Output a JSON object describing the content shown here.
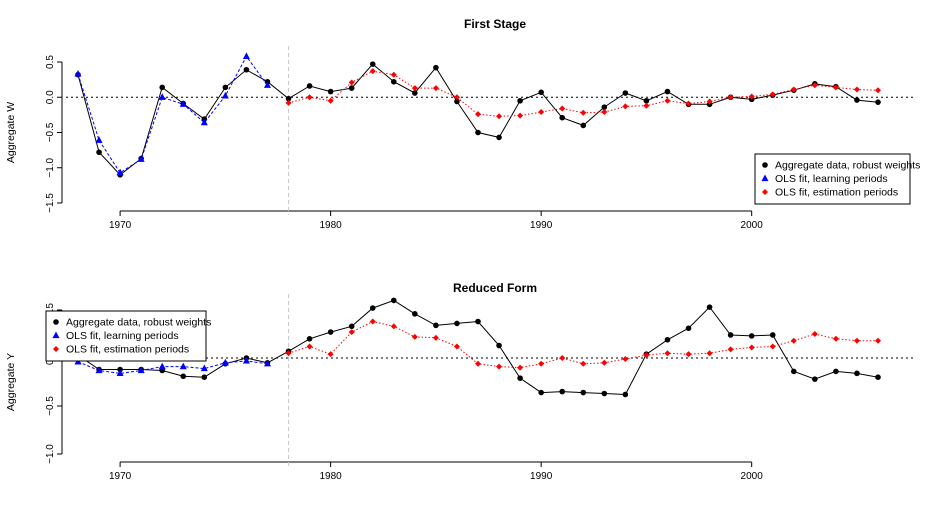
{
  "colors": {
    "aggregate": "#000000",
    "learning": "#0000ff",
    "estimation": "#ff0000",
    "break_line": "#c8c8c8"
  },
  "chart_data": [
    {
      "type": "line",
      "title": "First Stage",
      "ylabel": "Aggregate W",
      "xlabel": "",
      "xlim": [
        1968,
        2006
      ],
      "ylim": [
        -1.5,
        0.5
      ],
      "xticks": [
        1970,
        1980,
        1990,
        2000
      ],
      "yticks": [
        -1.5,
        -1.0,
        -0.5,
        0.0,
        0.5
      ],
      "ytick_labels": [
        "−1.5",
        "−1.0",
        "−0.5",
        "0.0",
        "0.5"
      ],
      "vertical_line_x": 1978,
      "reference_line_y": 0,
      "legend_position": "right",
      "series": [
        {
          "name": "Aggregate data, robust weights",
          "marker": "circle",
          "line": "solid",
          "x": [
            1968,
            1969,
            1970,
            1971,
            1972,
            1973,
            1974,
            1975,
            1976,
            1977,
            1978,
            1979,
            1980,
            1981,
            1982,
            1983,
            1984,
            1985,
            1986,
            1987,
            1988,
            1989,
            1990,
            1991,
            1992,
            1993,
            1994,
            1995,
            1996,
            1997,
            1998,
            1999,
            2000,
            2001,
            2002,
            2003,
            2004,
            2005,
            2006
          ],
          "values": [
            0.32,
            -0.78,
            -1.1,
            -0.87,
            0.14,
            -0.09,
            -0.31,
            0.14,
            0.39,
            0.22,
            -0.02,
            0.16,
            0.08,
            0.13,
            0.47,
            0.22,
            0.06,
            0.42,
            -0.06,
            -0.5,
            -0.57,
            -0.05,
            0.07,
            -0.29,
            -0.4,
            -0.14,
            0.06,
            -0.05,
            0.08,
            -0.1,
            -0.1,
            0.0,
            -0.03,
            0.03,
            0.1,
            0.19,
            0.15,
            -0.04,
            -0.07
          ]
        },
        {
          "name": "OLS fit, learning periods",
          "marker": "triangle",
          "line": "dashed",
          "x": [
            1968,
            1969,
            1970,
            1971,
            1972,
            1973,
            1974,
            1975,
            1976,
            1977
          ],
          "values": [
            0.33,
            -0.61,
            -1.07,
            -0.88,
            0.0,
            -0.1,
            -0.36,
            0.02,
            0.58,
            0.17
          ]
        },
        {
          "name": "OLS fit, estimation periods",
          "marker": "diamond",
          "line": "dotted",
          "x": [
            1978,
            1979,
            1980,
            1981,
            1982,
            1983,
            1984,
            1985,
            1986,
            1987,
            1988,
            1989,
            1990,
            1991,
            1992,
            1993,
            1994,
            1995,
            1996,
            1997,
            1998,
            1999,
            2000,
            2001,
            2002,
            2003,
            2004,
            2005,
            2006
          ],
          "values": [
            -0.08,
            0.0,
            -0.05,
            0.21,
            0.37,
            0.32,
            0.13,
            0.13,
            0.0,
            -0.24,
            -0.27,
            -0.26,
            -0.21,
            -0.16,
            -0.22,
            -0.21,
            -0.13,
            -0.12,
            -0.05,
            -0.09,
            -0.06,
            0.0,
            0.01,
            0.04,
            0.11,
            0.17,
            0.14,
            0.11,
            0.1
          ]
        }
      ]
    },
    {
      "type": "line",
      "title": "Reduced Form",
      "ylabel": "Aggregate Y",
      "xlabel": "",
      "xlim": [
        1968,
        2006
      ],
      "ylim": [
        -1.0,
        0.5
      ],
      "xticks": [
        1970,
        1980,
        1990,
        2000
      ],
      "yticks": [
        -1.0,
        -0.5,
        0.0,
        0.5
      ],
      "ytick_labels": [
        "−1.0",
        "−0.5",
        "0.0",
        "0.5"
      ],
      "vertical_line_x": 1978,
      "reference_line_y": 0,
      "legend_position": "top-left",
      "series": [
        {
          "name": "Aggregate data, robust weights",
          "marker": "circle",
          "line": "solid",
          "x": [
            1968,
            1969,
            1970,
            1971,
            1972,
            1973,
            1974,
            1975,
            1976,
            1977,
            1978,
            1979,
            1980,
            1981,
            1982,
            1983,
            1984,
            1985,
            1986,
            1987,
            1988,
            1989,
            1990,
            1991,
            1992,
            1993,
            1994,
            1995,
            1996,
            1997,
            1998,
            1999,
            2000,
            2001,
            2002,
            2003,
            2004,
            2005,
            2006
          ],
          "values": [
            0.03,
            -0.12,
            -0.12,
            -0.12,
            -0.13,
            -0.19,
            -0.2,
            -0.06,
            0.0,
            -0.05,
            0.07,
            0.2,
            0.27,
            0.33,
            0.52,
            0.6,
            0.46,
            0.34,
            0.36,
            0.38,
            0.13,
            -0.21,
            -0.36,
            -0.35,
            -0.36,
            -0.37,
            -0.38,
            0.04,
            0.19,
            0.31,
            0.53,
            0.24,
            0.23,
            0.24,
            -0.14,
            -0.22,
            -0.14,
            -0.16,
            -0.2
          ]
        },
        {
          "name": "OLS fit, learning periods",
          "marker": "triangle",
          "line": "dashed",
          "x": [
            1968,
            1969,
            1970,
            1971,
            1972,
            1973,
            1974,
            1975,
            1976,
            1977
          ],
          "values": [
            -0.04,
            -0.13,
            -0.16,
            -0.13,
            -0.09,
            -0.09,
            -0.11,
            -0.05,
            -0.03,
            -0.06
          ]
        },
        {
          "name": "OLS fit, estimation periods",
          "marker": "diamond",
          "line": "dotted",
          "x": [
            1978,
            1979,
            1980,
            1981,
            1982,
            1983,
            1984,
            1985,
            1986,
            1987,
            1988,
            1989,
            1990,
            1991,
            1992,
            1993,
            1994,
            1995,
            1996,
            1997,
            1998,
            1999,
            2000,
            2001,
            2002,
            2003,
            2004,
            2005,
            2006
          ],
          "values": [
            0.05,
            0.12,
            0.04,
            0.27,
            0.38,
            0.33,
            0.22,
            0.21,
            0.12,
            -0.06,
            -0.09,
            -0.1,
            -0.06,
            0.0,
            -0.06,
            -0.05,
            -0.01,
            0.03,
            0.05,
            0.04,
            0.05,
            0.09,
            0.11,
            0.12,
            0.18,
            0.25,
            0.2,
            0.18,
            0.18
          ]
        }
      ]
    }
  ]
}
